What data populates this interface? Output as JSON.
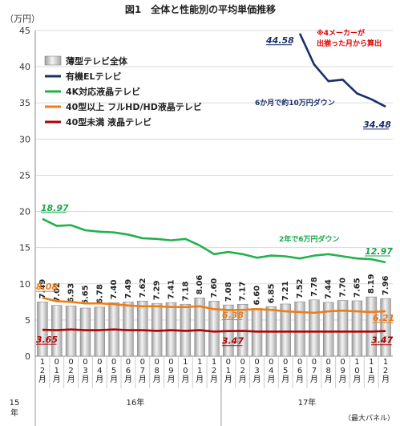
{
  "chart_data": {
    "type": "bar",
    "title": "図1　全体と性能別の平均単価推移",
    "unit_label": "（万円）",
    "source": "（最大パネル）",
    "ylim": [
      0,
      45
    ],
    "yticks": [
      0,
      5,
      10,
      15,
      20,
      25,
      30,
      35,
      40,
      45
    ],
    "categories": [
      "12月",
      "01月",
      "02月",
      "03月",
      "04月",
      "05月",
      "06月",
      "07月",
      "08月",
      "09月",
      "10月",
      "11月",
      "12月",
      "01月",
      "02月",
      "03月",
      "04月",
      "05月",
      "06月",
      "07月",
      "08月",
      "09月",
      "10月",
      "11月",
      "12月"
    ],
    "year_labels": [
      {
        "label": "15\n年",
        "start": 0,
        "end": 0
      },
      {
        "label": "16年",
        "start": 1,
        "end": 12
      },
      {
        "label": "17年",
        "start": 13,
        "end": 24
      }
    ],
    "legend": [
      {
        "name": "薄型テレビ全体",
        "kind": "bar",
        "color": "#cfcfcf"
      },
      {
        "name": "有機ELテレビ",
        "kind": "line",
        "color": "#1a2f6a"
      },
      {
        "name": "4K対応液晶テレビ",
        "kind": "line",
        "color": "#22b24c"
      },
      {
        "name": "40型以上 フルHD/HD液晶テレビ",
        "kind": "line",
        "color": "#ef7d14"
      },
      {
        "name": "40型未満 液晶テレビ",
        "kind": "line",
        "color": "#b30000"
      }
    ],
    "series": [
      {
        "name": "薄型テレビ全体",
        "kind": "bar",
        "color": "#cfcfcf",
        "values": [
          7.49,
          7.02,
          6.93,
          6.65,
          6.78,
          7.4,
          7.49,
          7.62,
          7.29,
          7.41,
          7.18,
          8.06,
          7.6,
          7.08,
          7.17,
          6.6,
          6.85,
          7.21,
          7.52,
          7.78,
          7.44,
          7.7,
          7.65,
          8.19,
          7.96
        ]
      },
      {
        "name": "有機ELテレビ",
        "kind": "line",
        "color": "#1a2f6a",
        "values": [
          null,
          null,
          null,
          null,
          null,
          null,
          null,
          null,
          null,
          null,
          null,
          null,
          null,
          null,
          null,
          null,
          null,
          null,
          44.58,
          40.3,
          38.0,
          38.2,
          36.3,
          35.5,
          34.48
        ]
      },
      {
        "name": "4K対応液晶テレビ",
        "kind": "line",
        "color": "#22b24c",
        "values": [
          18.97,
          18.0,
          18.1,
          17.4,
          17.2,
          17.1,
          16.8,
          16.3,
          16.2,
          16.0,
          16.2,
          15.3,
          14.1,
          14.4,
          14.1,
          13.6,
          13.9,
          13.8,
          13.5,
          13.9,
          14.1,
          13.8,
          13.5,
          13.4,
          12.97
        ]
      },
      {
        "name": "40型以上 フルHD/HD液晶テレビ",
        "kind": "line",
        "color": "#ef7d14",
        "values": [
          8.08,
          7.6,
          7.5,
          7.3,
          7.3,
          7.2,
          7.0,
          6.9,
          6.9,
          6.8,
          6.8,
          6.9,
          6.5,
          6.38,
          6.4,
          6.5,
          6.4,
          6.2,
          6.1,
          6.0,
          6.2,
          6.3,
          6.2,
          6.1,
          6.21
        ]
      },
      {
        "name": "40型未満 液晶テレビ",
        "kind": "line",
        "color": "#b30000",
        "values": [
          3.65,
          3.6,
          3.7,
          3.6,
          3.6,
          3.7,
          3.6,
          3.6,
          3.5,
          3.6,
          3.5,
          3.6,
          3.4,
          3.47,
          3.5,
          3.4,
          3.4,
          3.4,
          3.4,
          3.4,
          3.4,
          3.4,
          3.4,
          3.4,
          3.47
        ]
      }
    ],
    "callouts": [
      {
        "series": 1,
        "index": 18,
        "text": "44.58",
        "cls": "callout-blue"
      },
      {
        "series": 1,
        "index": 24,
        "text": "34.48",
        "cls": "callout-blue"
      },
      {
        "series": 2,
        "index": 0,
        "text": "18.97",
        "cls": "callout-green"
      },
      {
        "series": 2,
        "index": 24,
        "text": "12.97",
        "cls": "callout-green"
      },
      {
        "series": 3,
        "index": 0,
        "text": "8.08",
        "cls": "callout-orange"
      },
      {
        "series": 3,
        "index": 13,
        "text": "6.38",
        "cls": "callout-orange"
      },
      {
        "series": 3,
        "index": 24,
        "text": "6.21",
        "cls": "callout-orange"
      },
      {
        "series": 4,
        "index": 0,
        "text": "3.65",
        "cls": "callout-red"
      },
      {
        "series": 4,
        "index": 13,
        "text": "3.47",
        "cls": "callout-red"
      },
      {
        "series": 4,
        "index": 24,
        "text": "3.47",
        "cls": "callout-red"
      }
    ],
    "annotations": [
      {
        "text": "※4メーカーが",
        "cls": "note-red"
      },
      {
        "text": "出揃った月から算出",
        "cls": "note-red"
      },
      {
        "text": "6か月で約10万円ダウン",
        "cls": "annot-blue"
      },
      {
        "text": "2年で6万円ダウン",
        "cls": "annot-green"
      }
    ]
  }
}
